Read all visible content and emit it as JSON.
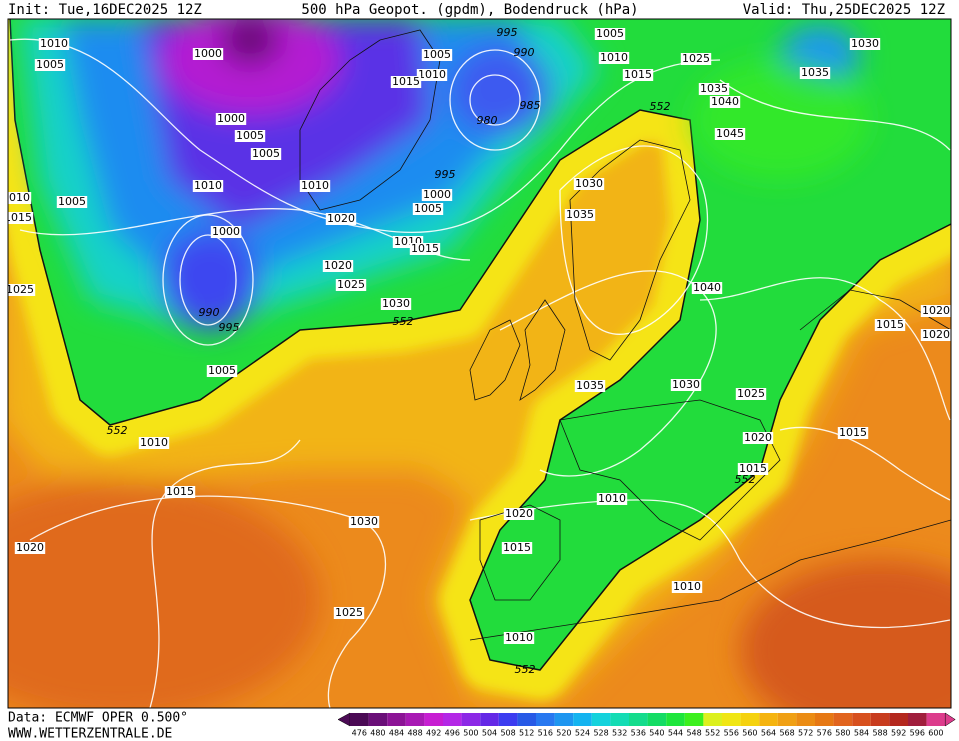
{
  "header": {
    "init": "Init: Tue,16DEC2025 12Z",
    "title": "500 hPa Geopot. (gpdm), Bodendruck (hPa)",
    "valid": "Valid: Thu,25DEC2025 12Z"
  },
  "footer": {
    "data": "Data: ECMWF OPER 0.500°",
    "site": "WWW.WETTERZENTRALE.DE"
  },
  "colorbar": {
    "values": [
      476,
      480,
      484,
      488,
      492,
      496,
      500,
      504,
      508,
      512,
      516,
      520,
      524,
      528,
      532,
      536,
      540,
      544,
      548,
      552,
      556,
      560,
      564,
      568,
      572,
      576,
      580,
      584,
      588,
      592,
      596,
      600
    ],
    "colors": [
      "#4b0a55",
      "#6a0f78",
      "#8c1496",
      "#a81ab4",
      "#c71ed2",
      "#b428e6",
      "#8c28e6",
      "#6428e6",
      "#3c3cf0",
      "#285ae6",
      "#2878f0",
      "#1e96f0",
      "#14b4f0",
      "#14d2dc",
      "#14dcb4",
      "#14dc8c",
      "#14dc64",
      "#1ee63c",
      "#3cf01e",
      "#dcf01e",
      "#f0e614",
      "#f5d20f",
      "#f5b40f",
      "#f0a014",
      "#eb8c14",
      "#e67814",
      "#e1641e",
      "#d7501e",
      "#c83c1e",
      "#b4281e",
      "#a01e3c",
      "#dc3c8c"
    ]
  },
  "isobar_labels": [
    1010,
    1005,
    1000,
    1000,
    1005,
    1005,
    1010,
    1005,
    1000,
    990,
    995,
    1005,
    1010,
    1020,
    1020,
    1025,
    1030,
    552,
    1010,
    1015,
    1000,
    1005,
    995,
    980,
    990,
    985,
    995,
    1005,
    1010,
    1015,
    1005,
    1010,
    1015,
    1025,
    1035,
    1040,
    552,
    1045,
    1030,
    1035,
    1030,
    1035,
    1040,
    1035,
    1030,
    1025,
    1020,
    1015,
    552,
    1015,
    1015,
    1020,
    1020,
    552,
    1010,
    1015,
    1030,
    1020,
    1025,
    1020,
    1015,
    1010,
    1010,
    1010,
    552,
    1025,
    1015,
    1010
  ]
}
